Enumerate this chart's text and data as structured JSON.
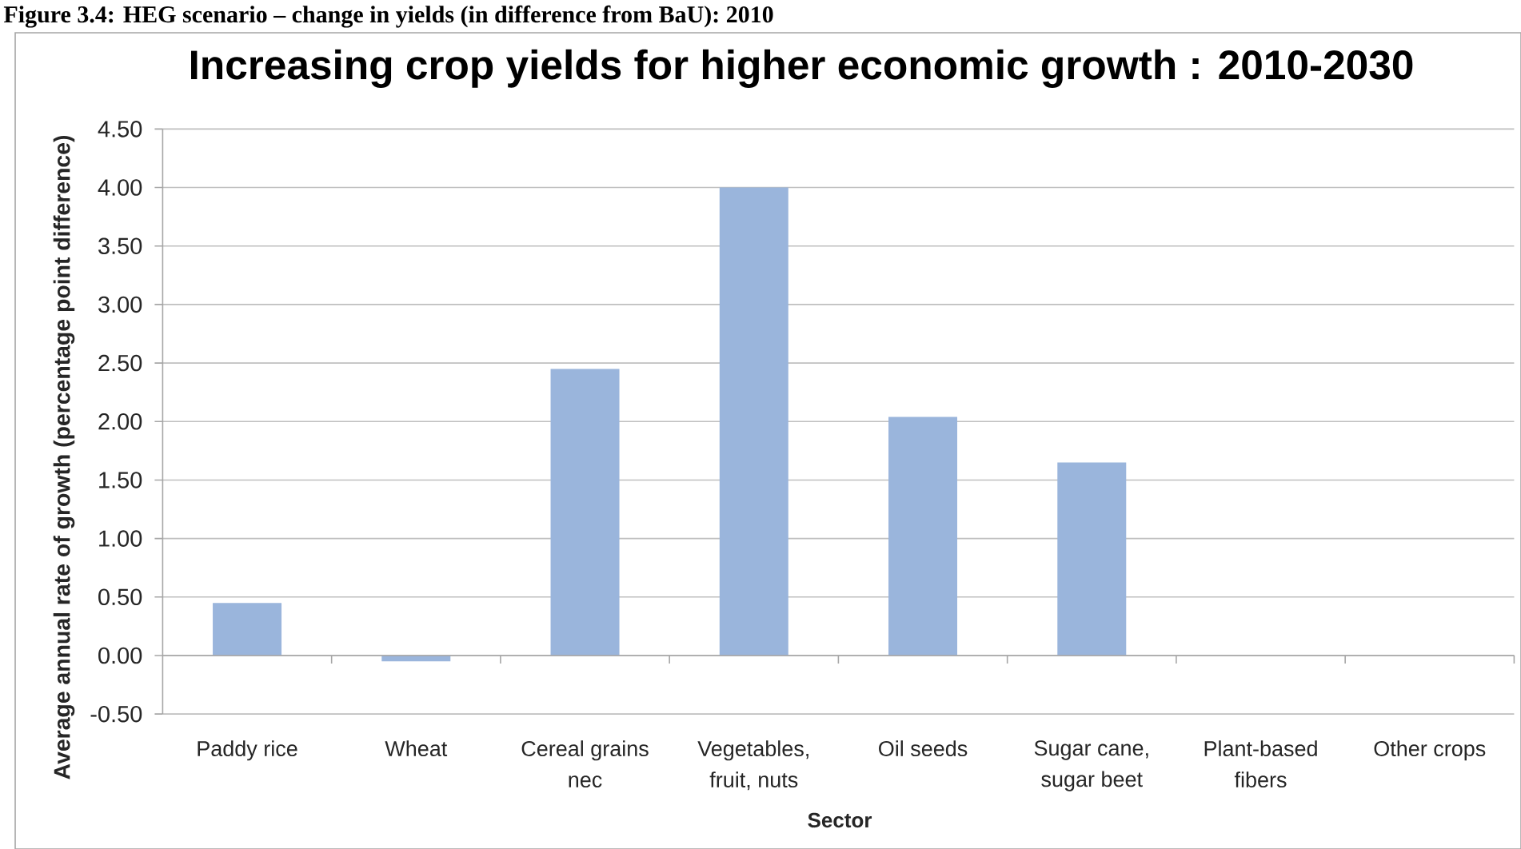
{
  "chart_data": {
    "type": "bar",
    "title": "Increasing crop yields for higher economic growth : 2010-2030",
    "xlabel": "Sector",
    "ylabel": "Average annual rate of growth (percentage point difference)",
    "categories": [
      "Paddy rice",
      "Wheat",
      "Cereal grains nec",
      "Vegetables, fruit, nuts",
      "Oil seeds",
      "Sugar cane, sugar beet",
      "Plant-based fibers",
      "Other crops"
    ],
    "values": [
      0.45,
      -0.05,
      2.45,
      4.0,
      2.04,
      1.65,
      0,
      0
    ],
    "color": "#9ab5dc",
    "ylim": [
      -0.5,
      4.5
    ],
    "yticks": [
      {
        "value": -0.5,
        "label": "-0.50"
      },
      {
        "value": 0,
        "label": "0.00"
      },
      {
        "value": 0.5,
        "label": "0.50"
      },
      {
        "value": 1,
        "label": "1.00"
      },
      {
        "value": 1.5,
        "label": "1.50"
      },
      {
        "value": 2,
        "label": "2.00"
      },
      {
        "value": 2.5,
        "label": "2.50"
      },
      {
        "value": 3,
        "label": "3.00"
      },
      {
        "value": 3.5,
        "label": "3.50"
      },
      {
        "value": 4,
        "label": "4.00"
      },
      {
        "value": 4.5,
        "label": "4.50"
      }
    ],
    "grid": "y",
    "annotations": [
      "Figure 3.4: HEG scenario – change in yields (in difference from BaU): 2010"
    ]
  }
}
